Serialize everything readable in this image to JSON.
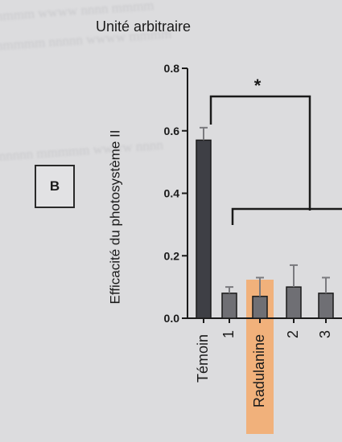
{
  "panel_letter": "B",
  "chart_data": {
    "type": "bar",
    "unit_label": "Unité arbitraire",
    "ylabel": "Efficacité du photosystème II",
    "categories": [
      "Témoin",
      "1",
      "Radulanine",
      "2",
      "3"
    ],
    "values": [
      0.57,
      0.08,
      0.07,
      0.1,
      0.08
    ],
    "errors": [
      0.04,
      0.02,
      0.06,
      0.07,
      0.05
    ],
    "highlighted_category": "Radulanine",
    "yticks": [
      {
        "value": 0.0,
        "label": "0.0"
      },
      {
        "value": 0.2,
        "label": "0.2"
      },
      {
        "value": 0.4,
        "label": "0.4"
      },
      {
        "value": 0.6,
        "label": "0.6"
      },
      {
        "value": 0.8,
        "label": "0.8"
      }
    ],
    "ylim": [
      0,
      0.8
    ],
    "significance": "*",
    "colors": {
      "control_bar": "#3e3f45",
      "treatment_bar": "#6f6f74",
      "highlight": "#f4a96a",
      "ink": "#1a1a1a"
    }
  }
}
